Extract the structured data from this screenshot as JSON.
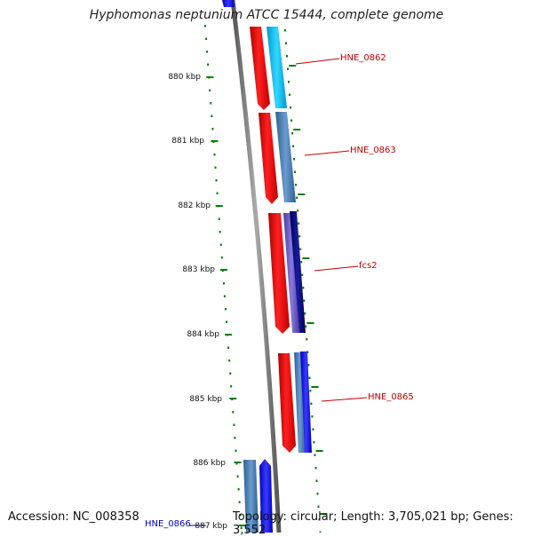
{
  "title": "Hyphomonas neptunium ATCC 15444, complete genome",
  "footer": {
    "accession": "Accession: NC_008358",
    "summary": "Topology: circular; Length: 3,705,021 bp; Genes: 3,552"
  },
  "ticks": [
    "880 kbp",
    "881 kbp",
    "882 kbp",
    "883 kbp",
    "884 kbp",
    "885 kbp",
    "886 kbp",
    "887 kbp"
  ],
  "genes": [
    {
      "label": "HNE_0862"
    },
    {
      "label": "HNE_0863"
    },
    {
      "label": "fcs2"
    },
    {
      "label": "HNE_0865"
    },
    {
      "label": "HNE_0866"
    }
  ],
  "colors": {
    "red": "#ff0000",
    "cyan": "#00c8ff",
    "steel": "#4682b4",
    "blue": "#0000ff",
    "purple": "#6a5acd",
    "navy": "#000080",
    "tick": "#008000",
    "backbone": "#808080"
  }
}
